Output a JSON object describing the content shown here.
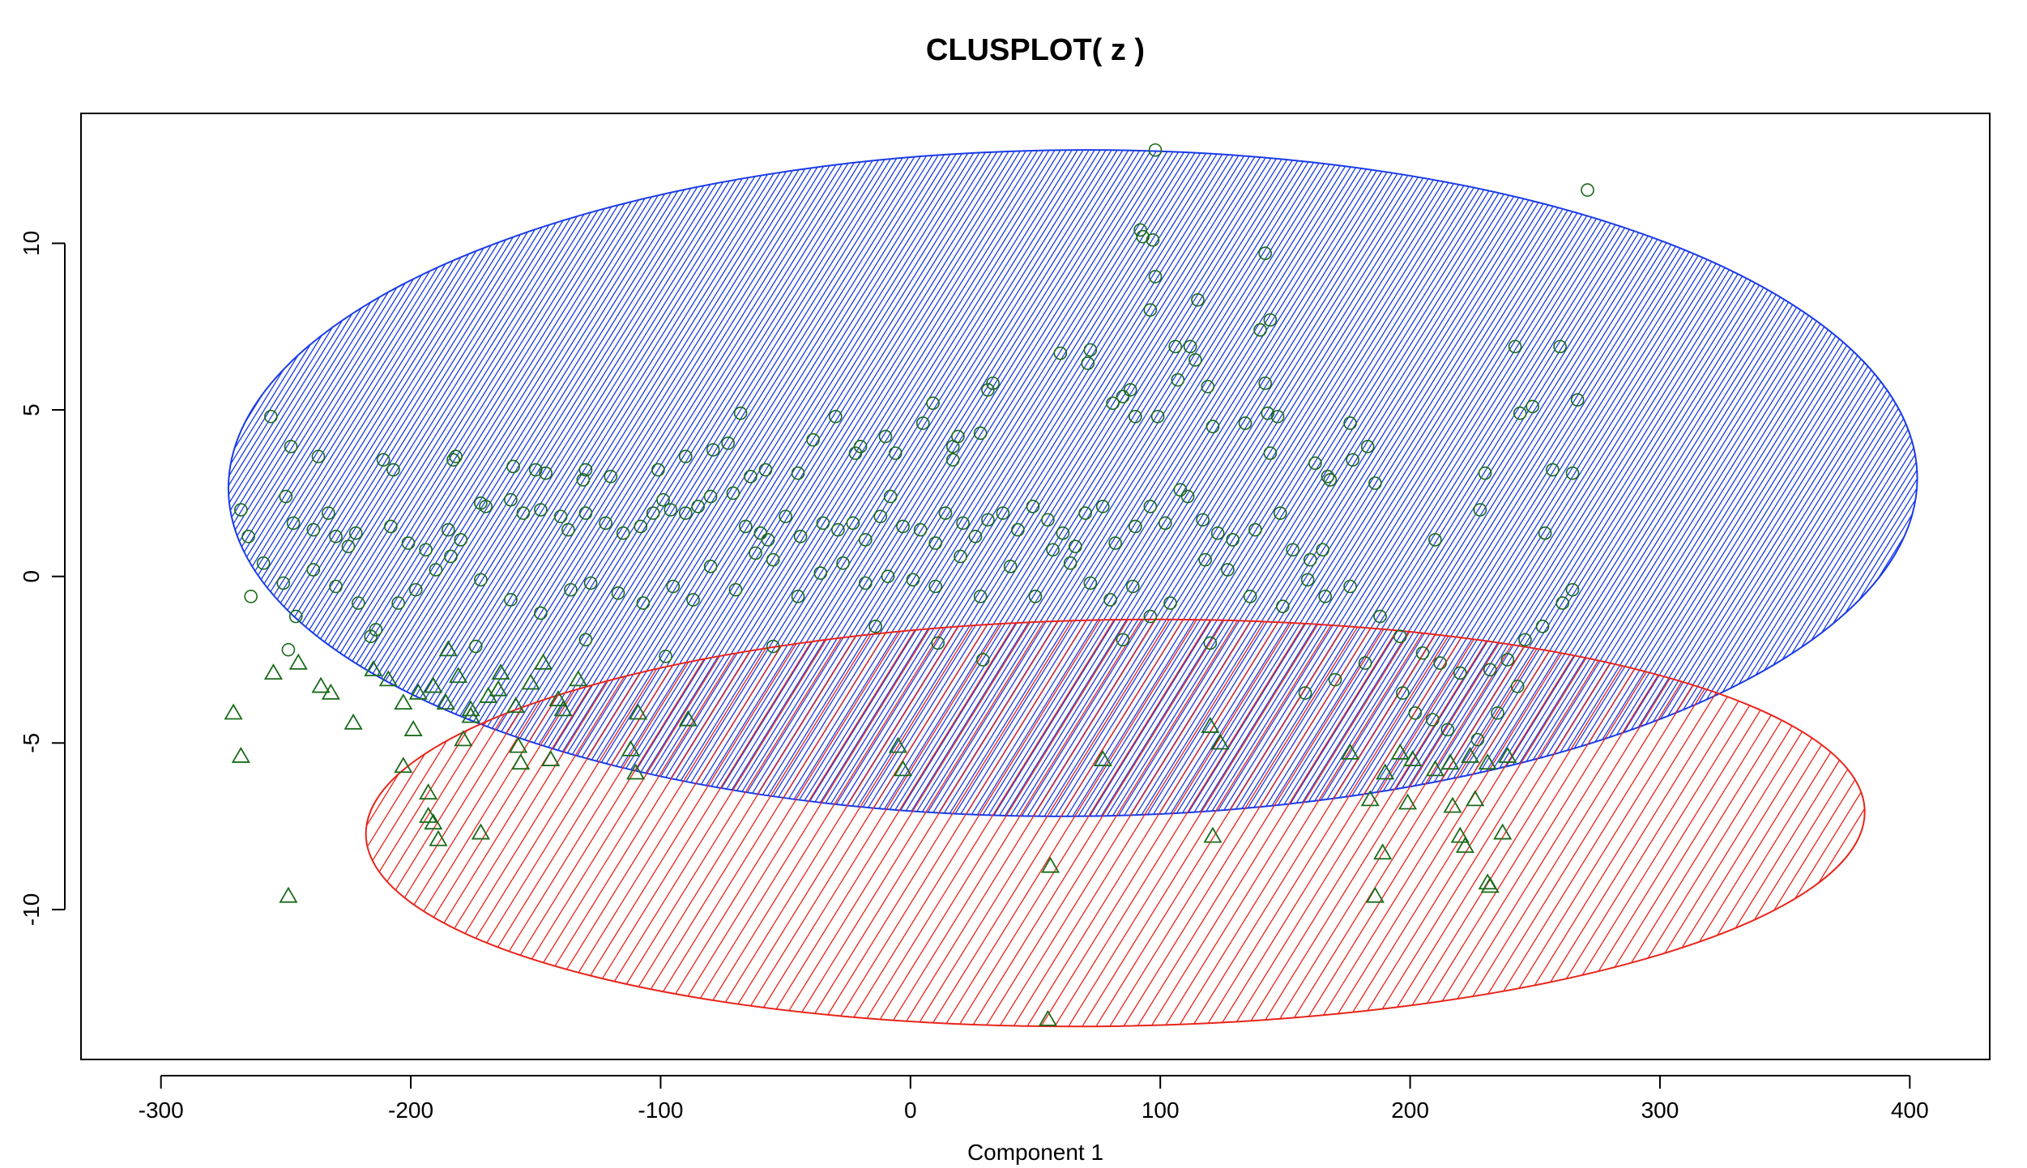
{
  "chart_data": {
    "type": "scatter",
    "title": "CLUSPLOT( z )",
    "xlabel": "Component 1",
    "ylabel": "",
    "xlim": [
      -332,
      432
    ],
    "ylim": [
      -14.5,
      13.9
    ],
    "x_ticks": [
      -300,
      -200,
      -100,
      0,
      100,
      200,
      300,
      400
    ],
    "y_ticks": [
      -10,
      -5,
      0,
      5,
      10
    ],
    "grid": false,
    "legend": "none",
    "point_color": "#1a6b1a",
    "clusters": [
      {
        "id": 1,
        "marker": "circle",
        "ellipse": {
          "cx": 65,
          "cy": 2.8,
          "rx": 338,
          "ry": 10.0,
          "rotation_deg": -0.4,
          "color": "#1a3be8",
          "hatch_spacing": 7
        },
        "points": [
          [
            98,
            12.8
          ],
          [
            271,
            11.6
          ],
          [
            92,
            10.4
          ],
          [
            93,
            10.2
          ],
          [
            97,
            10.1
          ],
          [
            98,
            9.0
          ],
          [
            142,
            9.7
          ],
          [
            115,
            8.3
          ],
          [
            96,
            8.0
          ],
          [
            144,
            7.7
          ],
          [
            140,
            7.4
          ],
          [
            106,
            6.9
          ],
          [
            112,
            6.9
          ],
          [
            114,
            6.5
          ],
          [
            60,
            6.7
          ],
          [
            72,
            6.8
          ],
          [
            71,
            6.4
          ],
          [
            242,
            6.9
          ],
          [
            260,
            6.9
          ],
          [
            107,
            5.9
          ],
          [
            119,
            5.7
          ],
          [
            33,
            5.8
          ],
          [
            31,
            5.6
          ],
          [
            142,
            5.8
          ],
          [
            88,
            5.6
          ],
          [
            85,
            5.4
          ],
          [
            81,
            5.2
          ],
          [
            90,
            4.8
          ],
          [
            99,
            4.8
          ],
          [
            143,
            4.9
          ],
          [
            147,
            4.8
          ],
          [
            134,
            4.6
          ],
          [
            121,
            4.5
          ],
          [
            267,
            5.3
          ],
          [
            244,
            4.9
          ],
          [
            249,
            5.1
          ],
          [
            -68,
            4.9
          ],
          [
            9,
            5.2
          ],
          [
            -30,
            4.8
          ],
          [
            5,
            4.6
          ],
          [
            -39,
            4.1
          ],
          [
            28,
            4.3
          ],
          [
            -256,
            4.8
          ],
          [
            -248,
            3.9
          ],
          [
            -237,
            3.6
          ],
          [
            -211,
            3.5
          ],
          [
            -207,
            3.2
          ],
          [
            -183,
            3.5
          ],
          [
            -182,
            3.6
          ],
          [
            -159,
            3.3
          ],
          [
            -150,
            3.2
          ],
          [
            -146,
            3.1
          ],
          [
            -131,
            2.9
          ],
          [
            -130,
            3.2
          ],
          [
            -120,
            3.0
          ],
          [
            -101,
            3.2
          ],
          [
            -90,
            3.6
          ],
          [
            -79,
            3.8
          ],
          [
            -73,
            4.0
          ],
          [
            -64,
            3.0
          ],
          [
            -58,
            3.2
          ],
          [
            -45,
            3.1
          ],
          [
            -22,
            3.7
          ],
          [
            -20,
            3.9
          ],
          [
            -10,
            4.2
          ],
          [
            -6,
            3.7
          ],
          [
            17,
            3.9
          ],
          [
            19,
            4.2
          ],
          [
            17,
            3.5
          ],
          [
            144,
            3.7
          ],
          [
            162,
            3.4
          ],
          [
            167,
            3.0
          ],
          [
            177,
            3.5
          ],
          [
            183,
            3.9
          ],
          [
            176,
            4.6
          ],
          [
            186,
            2.8
          ],
          [
            168,
            2.9
          ],
          [
            257,
            3.2
          ],
          [
            265,
            3.1
          ],
          [
            230,
            3.1
          ],
          [
            228,
            2.0
          ],
          [
            -268,
            2.0
          ],
          [
            -265,
            1.2
          ],
          [
            -250,
            2.4
          ],
          [
            -247,
            1.6
          ],
          [
            -239,
            1.4
          ],
          [
            -233,
            1.9
          ],
          [
            -230,
            1.2
          ],
          [
            -225,
            0.9
          ],
          [
            -222,
            1.3
          ],
          [
            -208,
            1.5
          ],
          [
            -201,
            1.0
          ],
          [
            -194,
            0.8
          ],
          [
            -185,
            1.4
          ],
          [
            -180,
            1.1
          ],
          [
            -172,
            2.2
          ],
          [
            -170,
            2.1
          ],
          [
            -160,
            2.3
          ],
          [
            -155,
            1.9
          ],
          [
            -148,
            2.0
          ],
          [
            -140,
            1.8
          ],
          [
            -137,
            1.4
          ],
          [
            -130,
            1.9
          ],
          [
            -122,
            1.6
          ],
          [
            -115,
            1.3
          ],
          [
            -108,
            1.5
          ],
          [
            -103,
            1.9
          ],
          [
            -99,
            2.3
          ],
          [
            -96,
            2.0
          ],
          [
            -90,
            1.9
          ],
          [
            -85,
            2.1
          ],
          [
            -80,
            2.4
          ],
          [
            -71,
            2.5
          ],
          [
            -66,
            1.5
          ],
          [
            -60,
            1.3
          ],
          [
            -57,
            1.1
          ],
          [
            -50,
            1.8
          ],
          [
            -44,
            1.2
          ],
          [
            -35,
            1.6
          ],
          [
            -29,
            1.4
          ],
          [
            -23,
            1.6
          ],
          [
            -18,
            1.1
          ],
          [
            -12,
            1.8
          ],
          [
            -8,
            2.4
          ],
          [
            -3,
            1.5
          ],
          [
            4,
            1.4
          ],
          [
            10,
            1.0
          ],
          [
            14,
            1.9
          ],
          [
            21,
            1.6
          ],
          [
            26,
            1.2
          ],
          [
            31,
            1.7
          ],
          [
            37,
            1.9
          ],
          [
            43,
            1.4
          ],
          [
            49,
            2.1
          ],
          [
            55,
            1.7
          ],
          [
            61,
            1.3
          ],
          [
            66,
            0.9
          ],
          [
            70,
            1.9
          ],
          [
            77,
            2.1
          ],
          [
            82,
            1.0
          ],
          [
            90,
            1.5
          ],
          [
            96,
            2.1
          ],
          [
            102,
            1.6
          ],
          [
            108,
            2.6
          ],
          [
            111,
            2.4
          ],
          [
            117,
            1.7
          ],
          [
            123,
            1.3
          ],
          [
            129,
            1.1
          ],
          [
            138,
            1.4
          ],
          [
            148,
            1.9
          ],
          [
            153,
            0.8
          ],
          [
            160,
            0.5
          ],
          [
            165,
            0.8
          ],
          [
            210,
            1.1
          ],
          [
            254,
            1.3
          ],
          [
            -264,
            -0.6
          ],
          [
            -259,
            0.4
          ],
          [
            -251,
            -0.2
          ],
          [
            -246,
            -1.2
          ],
          [
            -239,
            0.2
          ],
          [
            -230,
            -0.3
          ],
          [
            -221,
            -0.8
          ],
          [
            -214,
            -1.6
          ],
          [
            -205,
            -0.8
          ],
          [
            -198,
            -0.4
          ],
          [
            -190,
            0.2
          ],
          [
            -184,
            0.6
          ],
          [
            -172,
            -0.1
          ],
          [
            -160,
            -0.7
          ],
          [
            -148,
            -1.1
          ],
          [
            -136,
            -0.4
          ],
          [
            -128,
            -0.2
          ],
          [
            -117,
            -0.5
          ],
          [
            -107,
            -0.8
          ],
          [
            -95,
            -0.3
          ],
          [
            -87,
            -0.7
          ],
          [
            -80,
            0.3
          ],
          [
            -70,
            -0.4
          ],
          [
            -62,
            0.7
          ],
          [
            -55,
            0.5
          ],
          [
            -45,
            -0.6
          ],
          [
            -36,
            0.1
          ],
          [
            -27,
            0.4
          ],
          [
            -18,
            -0.2
          ],
          [
            -9,
            0.0
          ],
          [
            1,
            -0.1
          ],
          [
            10,
            -0.3
          ],
          [
            20,
            0.6
          ],
          [
            28,
            -0.6
          ],
          [
            40,
            0.3
          ],
          [
            50,
            -0.6
          ],
          [
            57,
            0.8
          ],
          [
            64,
            0.4
          ],
          [
            72,
            -0.2
          ],
          [
            80,
            -0.7
          ],
          [
            89,
            -0.3
          ],
          [
            96,
            -1.2
          ],
          [
            104,
            -0.8
          ],
          [
            118,
            0.5
          ],
          [
            127,
            0.2
          ],
          [
            136,
            -0.6
          ],
          [
            149,
            -0.9
          ],
          [
            159,
            -0.1
          ],
          [
            166,
            -0.6
          ],
          [
            176,
            -0.3
          ],
          [
            188,
            -1.2
          ],
          [
            196,
            -1.8
          ],
          [
            205,
            -2.3
          ],
          [
            212,
            -2.6
          ],
          [
            220,
            -2.9
          ],
          [
            232,
            -2.8
          ],
          [
            239,
            -2.5
          ],
          [
            246,
            -1.9
          ],
          [
            253,
            -1.5
          ],
          [
            261,
            -0.8
          ],
          [
            265,
            -0.4
          ],
          [
            -249,
            -2.2
          ],
          [
            -216,
            -1.8
          ],
          [
            -174,
            -2.1
          ],
          [
            -130,
            -1.9
          ],
          [
            -98,
            -2.4
          ],
          [
            -55,
            -2.1
          ],
          [
            -14,
            -1.5
          ],
          [
            11,
            -2.0
          ],
          [
            29,
            -2.5
          ],
          [
            85,
            -1.9
          ],
          [
            120,
            -2.0
          ],
          [
            158,
            -3.5
          ],
          [
            170,
            -3.1
          ],
          [
            182,
            -2.6
          ],
          [
            197,
            -3.5
          ],
          [
            202,
            -4.1
          ],
          [
            209,
            -4.3
          ],
          [
            215,
            -4.6
          ],
          [
            227,
            -4.9
          ],
          [
            235,
            -4.1
          ],
          [
            243,
            -3.3
          ]
        ]
      },
      {
        "id": 2,
        "marker": "triangle",
        "ellipse": {
          "cx": 82,
          "cy": -7.4,
          "rx": 300,
          "ry": 6.1,
          "rotation_deg": -0.9,
          "color": "#e8251b",
          "hatch_spacing": 17
        },
        "points": [
          [
            55,
            -13.3
          ],
          [
            -249,
            -9.6
          ],
          [
            186,
            -9.6
          ],
          [
            231,
            -9.2
          ],
          [
            232,
            -9.3
          ],
          [
            56,
            -8.7
          ],
          [
            -189,
            -7.9
          ],
          [
            -172,
            -7.7
          ],
          [
            121,
            -7.8
          ],
          [
            189,
            -8.3
          ],
          [
            220,
            -7.8
          ],
          [
            222,
            -8.1
          ],
          [
            237,
            -7.7
          ],
          [
            -193,
            -7.2
          ],
          [
            -191,
            -7.4
          ],
          [
            -193,
            -6.5
          ],
          [
            184,
            -6.7
          ],
          [
            199,
            -6.8
          ],
          [
            217,
            -6.9
          ],
          [
            226,
            -6.7
          ],
          [
            -271,
            -4.1
          ],
          [
            -268,
            -5.4
          ],
          [
            -203,
            -5.7
          ],
          [
            -199,
            -4.6
          ],
          [
            -179,
            -4.9
          ],
          [
            -176,
            -4.0
          ],
          [
            -157,
            -5.1
          ],
          [
            -156,
            -5.6
          ],
          [
            -144,
            -5.5
          ],
          [
            -112,
            -5.2
          ],
          [
            -110,
            -5.9
          ],
          [
            -5,
            -5.1
          ],
          [
            -3,
            -5.8
          ],
          [
            77,
            -5.5
          ],
          [
            120,
            -4.5
          ],
          [
            124,
            -5.0
          ],
          [
            176,
            -5.3
          ],
          [
            190,
            -5.9
          ],
          [
            196,
            -5.3
          ],
          [
            201,
            -5.5
          ],
          [
            210,
            -5.8
          ],
          [
            216,
            -5.6
          ],
          [
            224,
            -5.4
          ],
          [
            231,
            -5.6
          ],
          [
            239,
            -5.4
          ],
          [
            -255,
            -2.9
          ],
          [
            -245,
            -2.6
          ],
          [
            -236,
            -3.3
          ],
          [
            -232,
            -3.5
          ],
          [
            -223,
            -4.4
          ],
          [
            -215,
            -2.8
          ],
          [
            -209,
            -3.1
          ],
          [
            -203,
            -3.8
          ],
          [
            -197,
            -3.5
          ],
          [
            -191,
            -3.3
          ],
          [
            -186,
            -3.8
          ],
          [
            -181,
            -3.0
          ],
          [
            -176,
            -4.2
          ],
          [
            -169,
            -3.6
          ],
          [
            -164,
            -2.9
          ],
          [
            -158,
            -3.9
          ],
          [
            -152,
            -3.2
          ],
          [
            -147,
            -2.6
          ],
          [
            -139,
            -4.0
          ],
          [
            -133,
            -3.1
          ],
          [
            -109,
            -4.1
          ],
          [
            -89,
            -4.3
          ],
          [
            -185,
            -2.2
          ],
          [
            -165,
            -3.4
          ],
          [
            -141,
            -3.7
          ]
        ]
      }
    ]
  }
}
